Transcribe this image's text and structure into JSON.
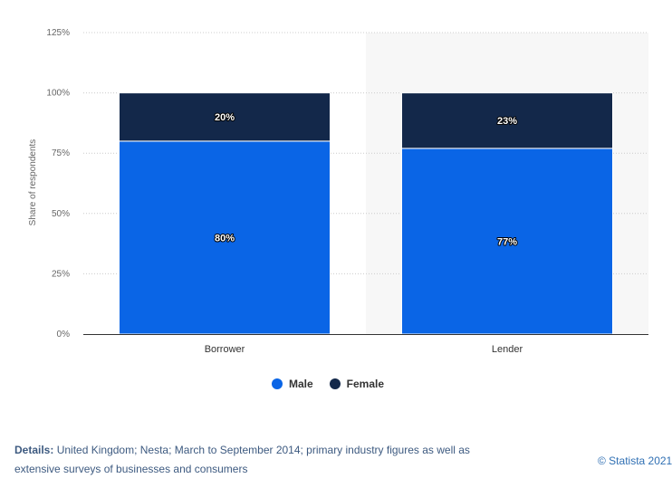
{
  "chart_data": {
    "type": "bar",
    "stacked": true,
    "categories": [
      "Borrower",
      "Lender"
    ],
    "series": [
      {
        "name": "Male",
        "values": [
          80,
          77
        ],
        "color": "#0a65e6"
      },
      {
        "name": "Female",
        "values": [
          20,
          23
        ],
        "color": "#13284a"
      }
    ],
    "data_labels": [
      [
        "80%",
        "77%"
      ],
      [
        "20%",
        "23%"
      ]
    ],
    "ylabel": "Share of respondents",
    "xlabel": "",
    "ylim": [
      0,
      125
    ],
    "yticks": [
      0,
      25,
      50,
      75,
      100,
      125
    ],
    "ytick_labels": [
      "0%",
      "25%",
      "50%",
      "75%",
      "100%",
      "125%"
    ],
    "grid": true,
    "legend_position": "bottom",
    "highlighted_category": "Lender"
  },
  "footer": {
    "details_label": "Details:",
    "details_text": "United Kingdom; Nesta; March to September 2014; primary industry figures as well as extensive surveys of businesses and consumers",
    "credit": "© Statista 2021"
  }
}
